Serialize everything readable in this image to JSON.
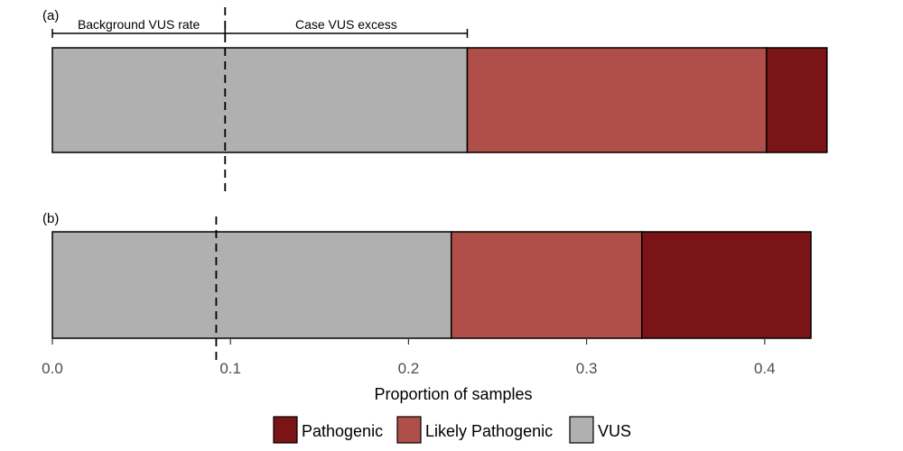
{
  "chart_data": {
    "type": "bar",
    "orientation": "horizontal",
    "stacked": true,
    "xlabel": "Proportion of samples",
    "xlim": [
      0,
      0.45
    ],
    "xticks": [
      0.0,
      0.1,
      0.2,
      0.3,
      0.4
    ],
    "xtick_labels": [
      "0.0",
      "0.1",
      "0.2",
      "0.3",
      "0.4"
    ],
    "grid": false,
    "legend_position": "bottom",
    "legend": [
      {
        "name": "Pathogenic",
        "color": "#7a1416"
      },
      {
        "name": "Likely Pathogenic",
        "color": "#b04f49"
      },
      {
        "name": "VUS",
        "color": "#b0b0b0"
      }
    ],
    "panels": [
      {
        "label": "(a)",
        "segments": [
          {
            "series": "VUS",
            "value": 0.233
          },
          {
            "series": "Likely Pathogenic",
            "value": 0.168
          },
          {
            "series": "Pathogenic",
            "value": 0.034
          }
        ],
        "reference_line": 0.097
      },
      {
        "label": "(b)",
        "segments": [
          {
            "series": "VUS",
            "value": 0.224
          },
          {
            "series": "Likely Pathogenic",
            "value": 0.107
          },
          {
            "series": "Pathogenic",
            "value": 0.095
          }
        ],
        "reference_line": 0.092
      }
    ],
    "annotations": [
      {
        "text": "Background VUS rate",
        "from": 0.0,
        "to": 0.097
      },
      {
        "text": "Case VUS excess",
        "from": 0.097,
        "to": 0.233
      }
    ]
  }
}
